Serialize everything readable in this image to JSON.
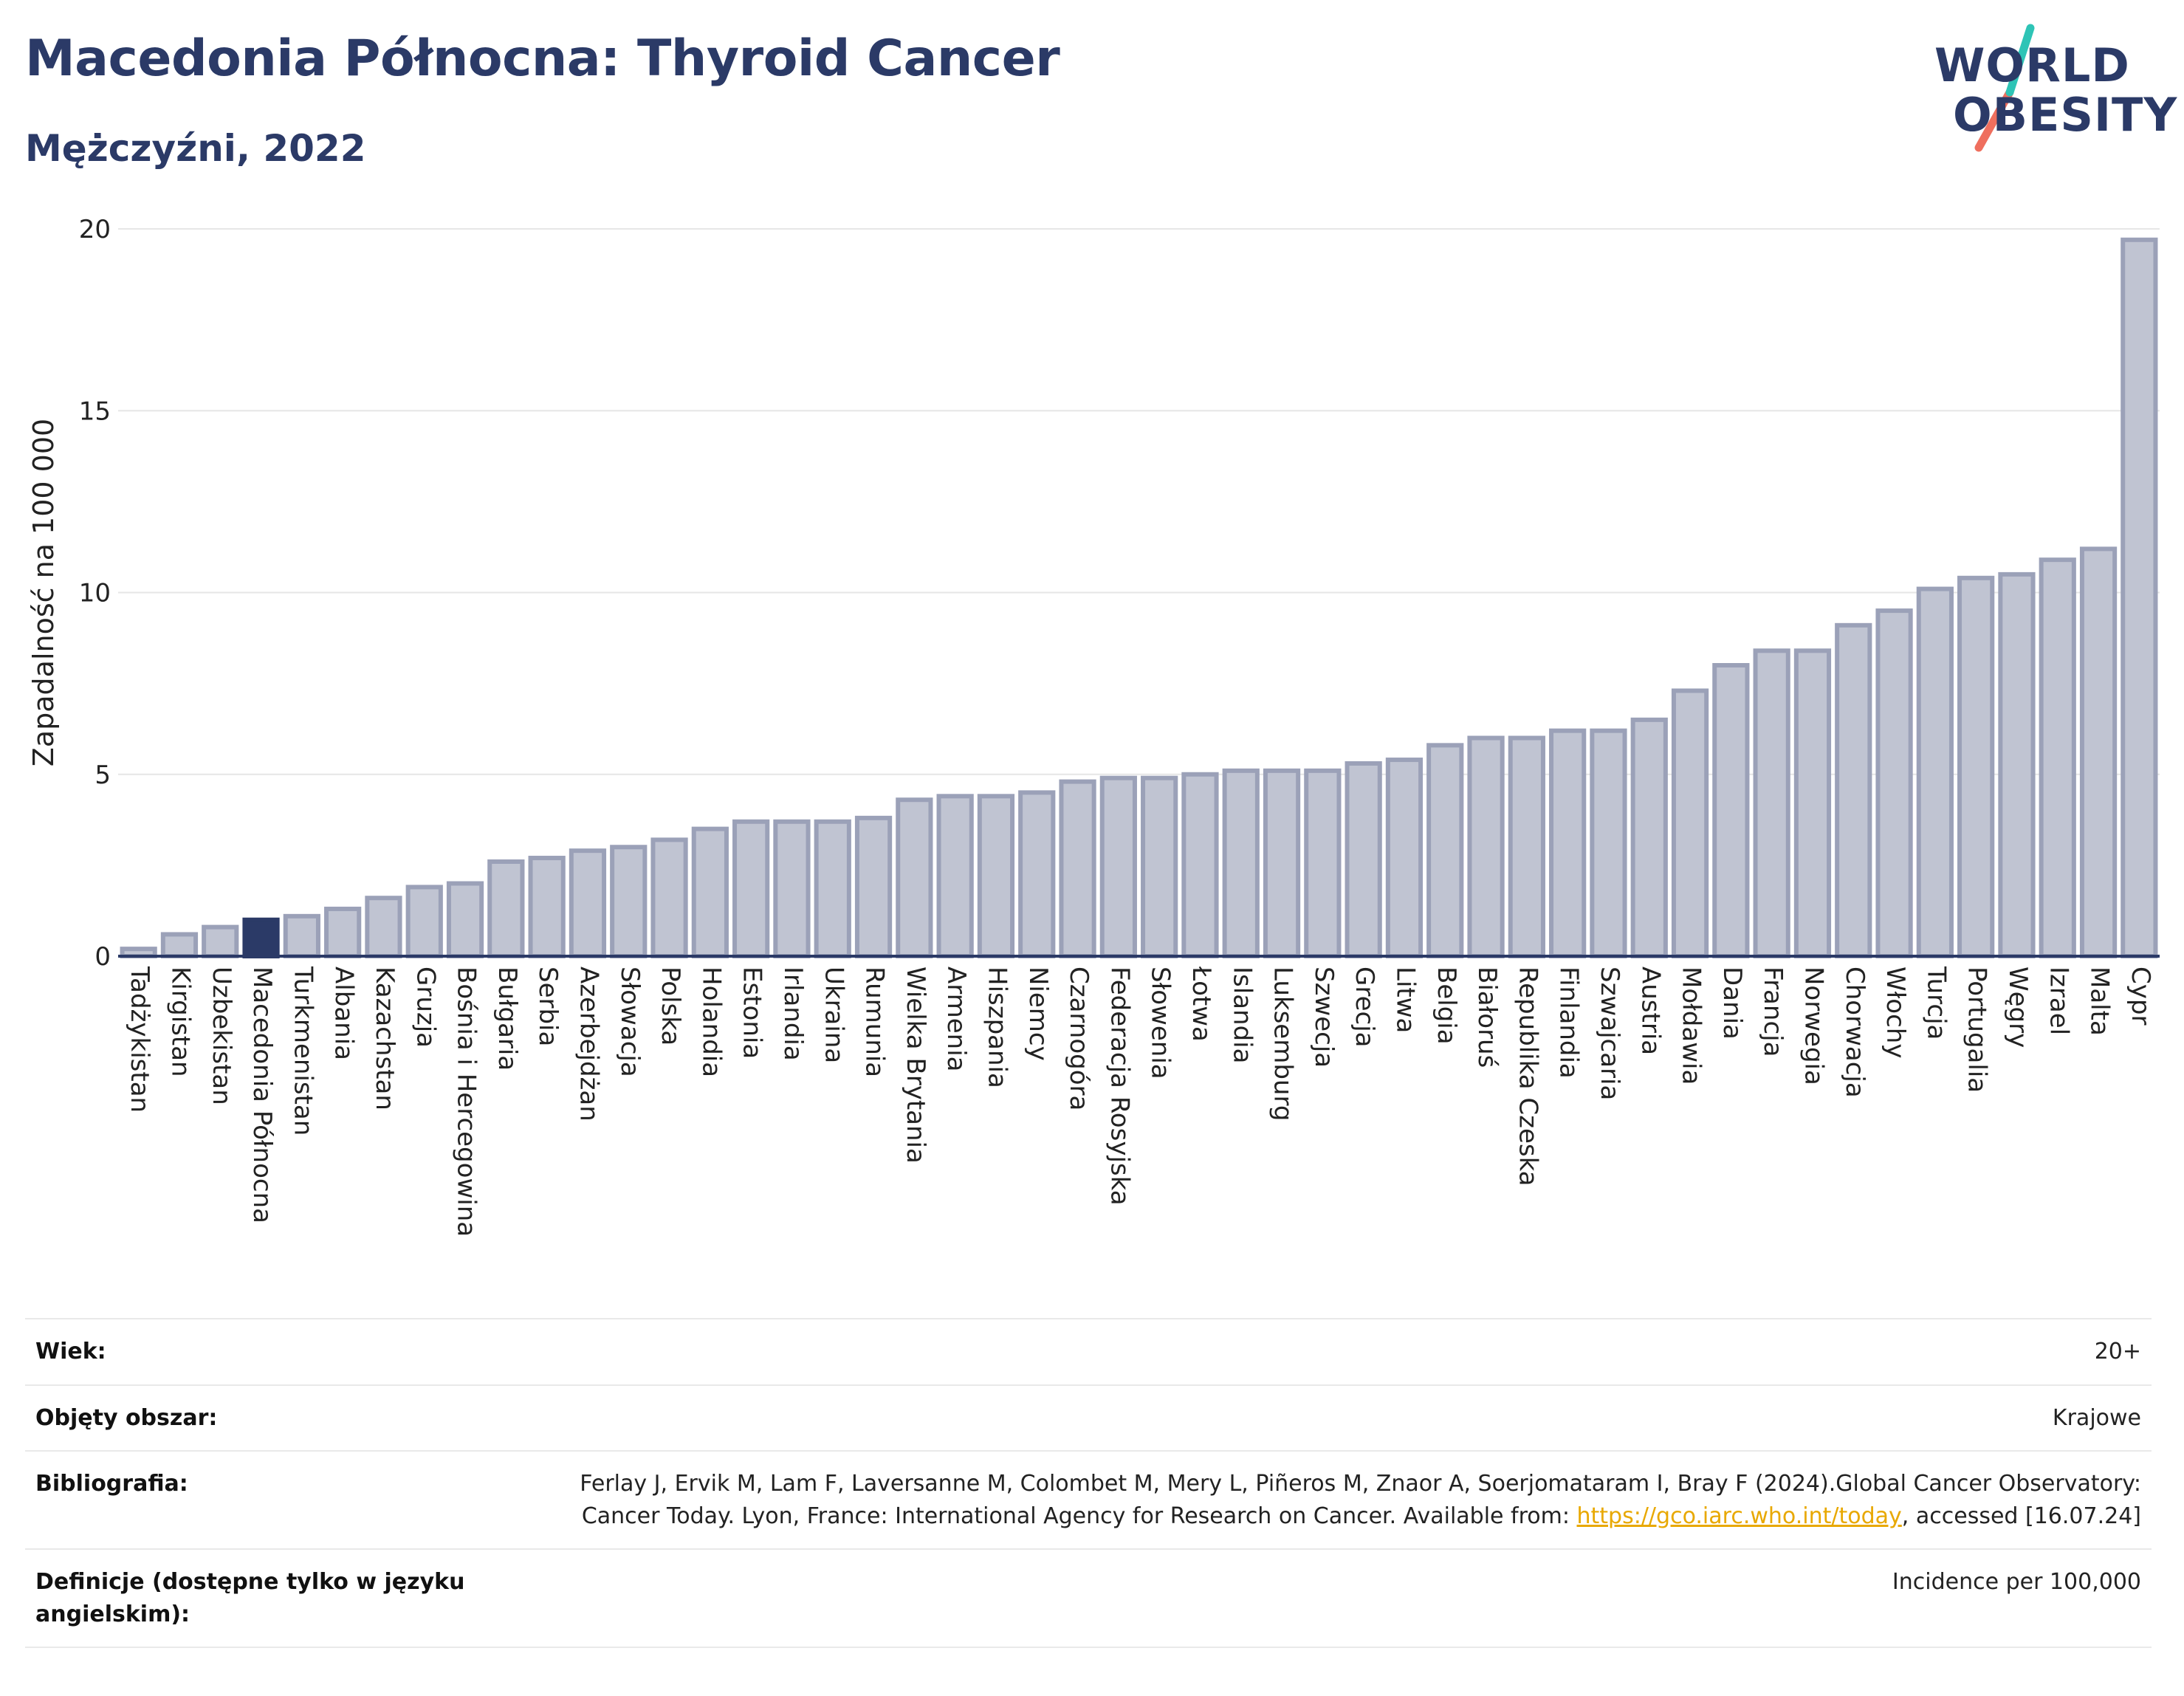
{
  "header": {
    "title": "Macedonia Północna: Thyroid Cancer",
    "subtitle": "Mężczyźni, 2022",
    "logo_line1": "WORLD",
    "logo_line2": "OBESITY"
  },
  "colors": {
    "bar": "#c0c4d2",
    "bar_border": "#9ba1b8",
    "highlight": "#2b3a67",
    "title": "#2b3a67",
    "logo_teal": "#2ec4b6",
    "logo_coral": "#ef6f5e",
    "link": "#e8a800"
  },
  "chart_data": {
    "type": "bar",
    "ylabel": "Zapadalność na 100 000",
    "xlabel": "",
    "ylim": [
      0,
      20
    ],
    "yticks": [
      0,
      5,
      10,
      15,
      20
    ],
    "grid": true,
    "highlight": "Macedonia Północna",
    "categories": [
      "Tadżykistan",
      "Kirgistan",
      "Uzbekistan",
      "Macedonia Północna",
      "Turkmenistan",
      "Albania",
      "Kazachstan",
      "Gruzja",
      "Bośnia i Hercegowina",
      "Bułgaria",
      "Serbia",
      "Azerbejdżan",
      "Słowacja",
      "Polska",
      "Holandia",
      "Estonia",
      "Irlandia",
      "Ukraina",
      "Rumunia",
      "Wielka Brytania",
      "Armenia",
      "Hiszpania",
      "Niemcy",
      "Czarnogóra",
      "Federacja Rosyjska",
      "Słowenia",
      "Łotwa",
      "Islandia",
      "Luksemburg",
      "Szwecja",
      "Grecja",
      "Litwa",
      "Belgia",
      "Białoruś",
      "Republika Czeska",
      "Finlandia",
      "Szwajcaria",
      "Austria",
      "Mołdawia",
      "Dania",
      "Francja",
      "Norwegia",
      "Chorwacja",
      "Włochy",
      "Turcja",
      "Portugalia",
      "Węgry",
      "Izrael",
      "Malta",
      "Cypr"
    ],
    "values": [
      0.2,
      0.6,
      0.8,
      1.0,
      1.1,
      1.3,
      1.6,
      1.9,
      2.0,
      2.6,
      2.7,
      2.9,
      3.0,
      3.2,
      3.5,
      3.7,
      3.7,
      3.7,
      3.8,
      4.3,
      4.4,
      4.4,
      4.5,
      4.8,
      4.9,
      4.9,
      5.0,
      5.1,
      5.1,
      5.1,
      5.3,
      5.4,
      5.8,
      6.0,
      6.0,
      6.2,
      6.2,
      6.5,
      7.3,
      8.0,
      8.4,
      8.4,
      9.1,
      9.5,
      10.1,
      10.4,
      10.5,
      10.9,
      11.2,
      19.7
    ]
  },
  "meta": {
    "age_label": "Wiek:",
    "age_value": "20+",
    "coverage_label": "Objęty obszar:",
    "coverage_value": "Krajowe",
    "bibliography_label": "Bibliografia:",
    "bibliography_text1": "Ferlay J, Ervik M, Lam F, Laversanne M, Colombet M, Mery L, Piñeros M, Znaor A, Soerjomataram I, Bray F (2024).Global Cancer Observatory: Cancer Today. Lyon, France: International Agency for Research on Cancer. Available from: ",
    "bibliography_link": "https://gco.iarc.who.int/today",
    "bibliography_text2": ", accessed [16.07.24]",
    "definitions_label": "Definicje (dostępne tylko w języku angielskim):",
    "definitions_value": "Incidence per 100,000"
  }
}
